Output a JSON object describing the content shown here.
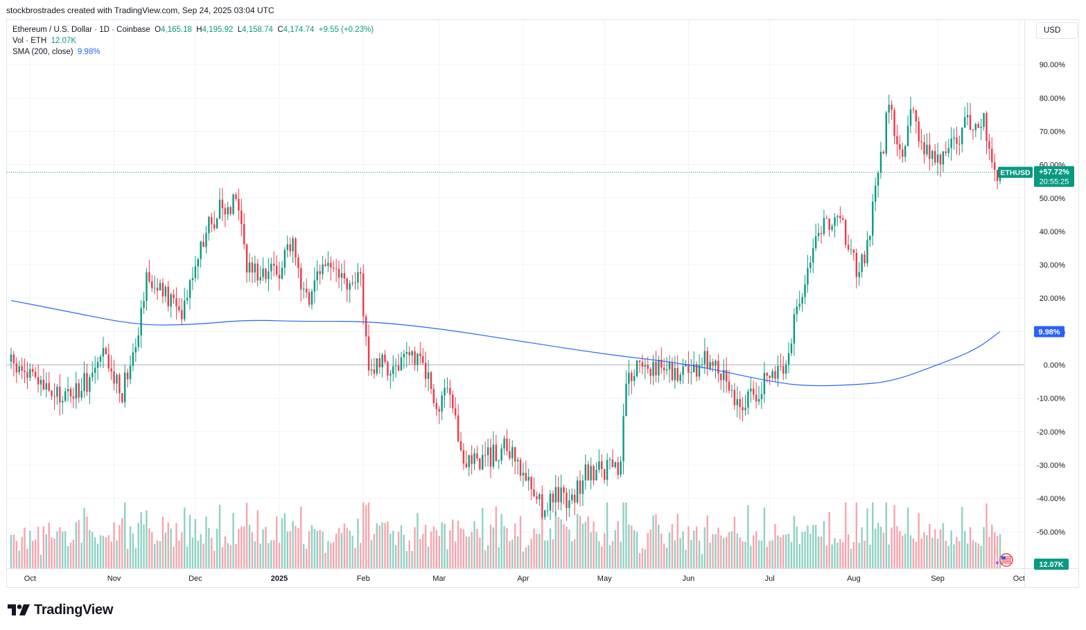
{
  "header": {
    "attribution": "stockbrostrades created with TradingView.com, Sep 24, 2025 03:04 UTC"
  },
  "legend": {
    "symbol": "Ethereum / U.S. Dollar · 1D · Coinbase",
    "o_label": "O",
    "o_value": "4,165.18",
    "h_label": "H",
    "h_value": "4,195.92",
    "l_label": "L",
    "l_value": "4,158.74",
    "c_label": "C",
    "c_value": "4,174.74",
    "change": "+9.55 (+0.23%)",
    "vol_label": "Vol · ETH",
    "vol_value": "12.07K",
    "sma_label": "SMA (200, close)",
    "sma_value": "9.98%"
  },
  "currency_button": "USD",
  "brand": {
    "name": "TradingView",
    "logo_icon": "tradingview-logo-icon"
  },
  "flag_icon": "us-flag-icon",
  "colors": {
    "up": "#089981",
    "down": "#f23645",
    "sma": "#2962ff",
    "vol_up": "#8fd1c4",
    "vol_down": "#f6a5ad",
    "zero_line": "#b2b5be"
  },
  "chart_data": {
    "type": "candlestick",
    "symbol": "ETHUSD",
    "scale": "percent",
    "y_unit": "%",
    "ylim": [
      -57,
      101
    ],
    "y_ticks": [
      "90.00%",
      "80.00%",
      "70.00%",
      "60.00%",
      "50.00%",
      "40.00%",
      "30.00%",
      "20.00%",
      "10.00%",
      "0.00%",
      "-10.00%",
      "-20.00%",
      "-30.00%",
      "-40.00%",
      "-50.00%"
    ],
    "x_ticks": [
      "Oct",
      "Nov",
      "Dec",
      "2025",
      "Feb",
      "Mar",
      "Apr",
      "May",
      "Jun",
      "Jul",
      "Aug",
      "Sep",
      "Oct"
    ],
    "grid": true,
    "series": [
      {
        "name": "ETHUSD",
        "kind": "close_path",
        "points": [
          [
            "2024-09-24",
            0
          ],
          [
            "2024-10-01",
            -3
          ],
          [
            "2024-10-10",
            -10
          ],
          [
            "2024-10-20",
            -7
          ],
          [
            "2024-10-28",
            2
          ],
          [
            "2024-11-04",
            -8
          ],
          [
            "2024-11-10",
            12
          ],
          [
            "2024-11-13",
            27
          ],
          [
            "2024-11-20",
            20
          ],
          [
            "2024-11-26",
            17
          ],
          [
            "2024-12-01",
            31
          ],
          [
            "2024-12-05",
            40
          ],
          [
            "2024-12-08",
            44
          ],
          [
            "2024-12-10",
            48
          ],
          [
            "2024-12-13",
            46
          ],
          [
            "2024-12-16",
            53
          ],
          [
            "2024-12-18",
            44
          ],
          [
            "2024-12-20",
            28
          ],
          [
            "2024-12-25",
            29
          ],
          [
            "2024-12-31",
            27
          ],
          [
            "2025-01-06",
            39
          ],
          [
            "2025-01-08",
            27
          ],
          [
            "2025-01-13",
            19
          ],
          [
            "2025-01-17",
            31
          ],
          [
            "2025-01-20",
            30
          ],
          [
            "2025-01-27",
            22
          ],
          [
            "2025-01-31",
            27
          ],
          [
            "2025-02-03",
            -1
          ],
          [
            "2025-02-10",
            0
          ],
          [
            "2025-02-16",
            0
          ],
          [
            "2025-02-22",
            4
          ],
          [
            "2025-02-25",
            -5
          ],
          [
            "2025-03-01",
            -13
          ],
          [
            "2025-03-04",
            -9
          ],
          [
            "2025-03-10",
            -28
          ],
          [
            "2025-03-18",
            -28
          ],
          [
            "2025-03-26",
            -25
          ],
          [
            "2025-03-31",
            -32
          ],
          [
            "2025-04-06",
            -38
          ],
          [
            "2025-04-08",
            -43
          ],
          [
            "2025-04-12",
            -39
          ],
          [
            "2025-04-20",
            -40
          ],
          [
            "2025-04-23",
            -33
          ],
          [
            "2025-05-01",
            -31
          ],
          [
            "2025-05-07",
            -32
          ],
          [
            "2025-05-09",
            -5
          ],
          [
            "2025-05-13",
            -1
          ],
          [
            "2025-05-20",
            0
          ],
          [
            "2025-05-28",
            -2
          ],
          [
            "2025-06-03",
            -2
          ],
          [
            "2025-06-10",
            3
          ],
          [
            "2025-06-15",
            -4
          ],
          [
            "2025-06-21",
            -14
          ],
          [
            "2025-06-24",
            -9
          ],
          [
            "2025-06-30",
            -5
          ],
          [
            "2025-07-03",
            -3
          ],
          [
            "2025-07-08",
            2
          ],
          [
            "2025-07-10",
            14
          ],
          [
            "2025-07-14",
            26
          ],
          [
            "2025-07-17",
            37
          ],
          [
            "2025-07-21",
            42
          ],
          [
            "2025-07-28",
            41
          ],
          [
            "2025-08-02",
            28
          ],
          [
            "2025-08-06",
            34
          ],
          [
            "2025-08-08",
            47
          ],
          [
            "2025-08-11",
            61
          ],
          [
            "2025-08-14",
            78
          ],
          [
            "2025-08-19",
            60
          ],
          [
            "2025-08-22",
            80
          ],
          [
            "2025-08-25",
            66
          ],
          [
            "2025-09-01",
            62
          ],
          [
            "2025-09-06",
            65
          ],
          [
            "2025-09-12",
            72
          ],
          [
            "2025-09-15",
            74
          ],
          [
            "2025-09-18",
            72
          ],
          [
            "2025-09-22",
            59
          ],
          [
            "2025-09-24",
            57.72
          ]
        ]
      },
      {
        "name": "SMA (200, close)",
        "kind": "line",
        "points": [
          [
            "2024-09-24",
            19.3
          ],
          [
            "2024-10-15",
            16
          ],
          [
            "2024-11-10",
            11.8
          ],
          [
            "2024-12-01",
            12.1
          ],
          [
            "2024-12-20",
            13.5
          ],
          [
            "2025-01-10",
            13
          ],
          [
            "2025-02-03",
            13.1
          ],
          [
            "2025-03-01",
            10.9
          ],
          [
            "2025-04-01",
            7
          ],
          [
            "2025-05-01",
            3.2
          ],
          [
            "2025-06-01",
            0.3
          ],
          [
            "2025-07-01",
            -5
          ],
          [
            "2025-07-15",
            -6.4
          ],
          [
            "2025-08-01",
            -6
          ],
          [
            "2025-08-15",
            -5
          ],
          [
            "2025-09-01",
            0
          ],
          [
            "2025-09-15",
            4.5
          ],
          [
            "2025-09-24",
            9.98
          ]
        ]
      }
    ],
    "last_value_label": "+57.72%",
    "countdown": "20:55:25",
    "sma_last_label": "9.98%",
    "volume_last_label": "12.07K"
  }
}
